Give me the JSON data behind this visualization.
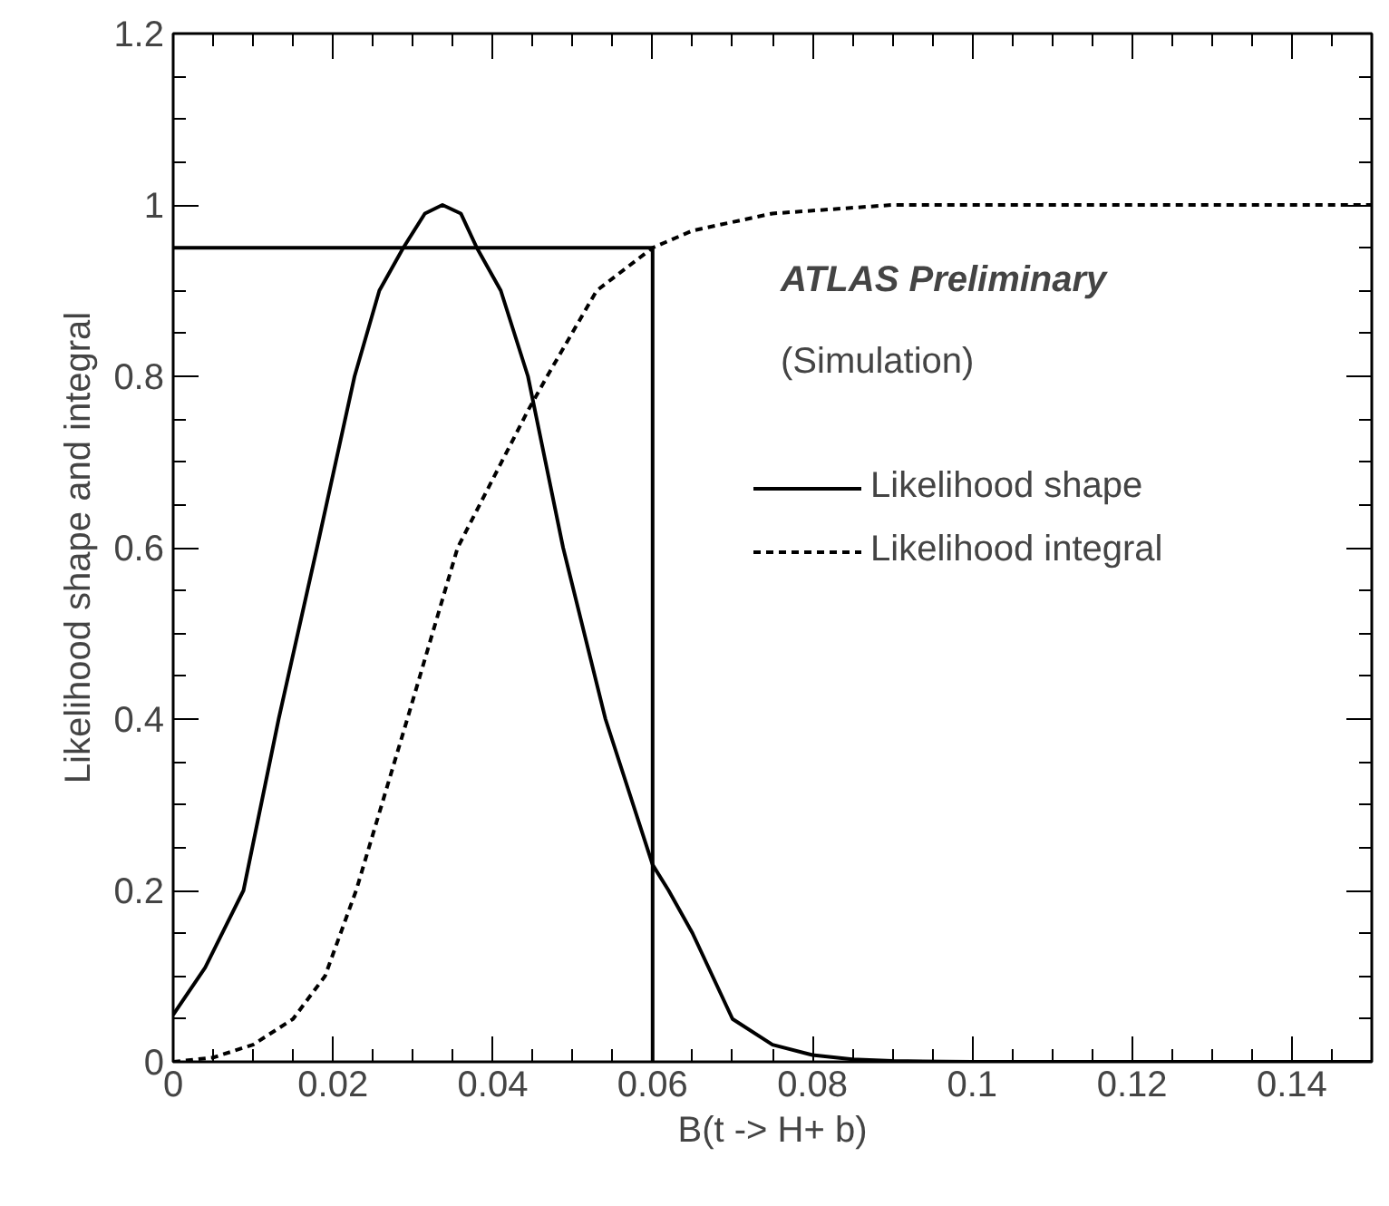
{
  "chart_data": {
    "type": "line",
    "xlabel": "B(t -> H+ b)",
    "ylabel": "Likelihood shape and integral",
    "xlim": [
      0,
      0.15
    ],
    "ylim": [
      0,
      1.2
    ],
    "xticks": [
      0,
      0.02,
      0.04,
      0.06,
      0.08,
      0.1,
      0.12,
      0.14
    ],
    "yticks": [
      0,
      0.2,
      0.4,
      0.6,
      0.8,
      1,
      1.2
    ],
    "grid": false,
    "legend": "right",
    "marker": "none",
    "annotations": [
      "ATLAS Preliminary",
      "(Simulation)"
    ],
    "series": [
      {
        "name": "Likelihood shape",
        "color": "#000000",
        "line_style": "solid",
        "x": [
          0,
          0.004,
          0.0088,
          0.0132,
          0.018,
          0.0227,
          0.0258,
          0.0288,
          0.0315,
          0.0337,
          0.036,
          0.038,
          0.041,
          0.0444,
          0.0488,
          0.0541,
          0.06,
          0.062,
          0.065,
          0.07,
          0.075,
          0.08,
          0.085,
          0.09,
          0.1,
          0.15
        ],
        "values": [
          0.055,
          0.11,
          0.2,
          0.4,
          0.6,
          0.8,
          0.9,
          0.95,
          0.99,
          1.0,
          0.99,
          0.95,
          0.9,
          0.8,
          0.6,
          0.4,
          0.23,
          0.2,
          0.15,
          0.05,
          0.02,
          0.008,
          0.003,
          0.001,
          0,
          0
        ]
      },
      {
        "name": "Likelihood integral",
        "color": "#000000",
        "line_style": "dashed",
        "x": [
          0,
          0.005,
          0.01,
          0.015,
          0.019,
          0.0229,
          0.0293,
          0.0356,
          0.0444,
          0.0468,
          0.053,
          0.06,
          0.065,
          0.075,
          0.09,
          0.15
        ],
        "values": [
          0,
          0.005,
          0.02,
          0.05,
          0.1,
          0.2,
          0.4,
          0.6,
          0.76,
          0.8,
          0.9,
          0.95,
          0.97,
          0.99,
          1.0,
          1.0
        ]
      },
      {
        "color": "#000000",
        "line_style": "solid",
        "x": [
          0,
          0.06,
          0.06
        ],
        "values": [
          0.95,
          0.95,
          0
        ]
      }
    ]
  }
}
